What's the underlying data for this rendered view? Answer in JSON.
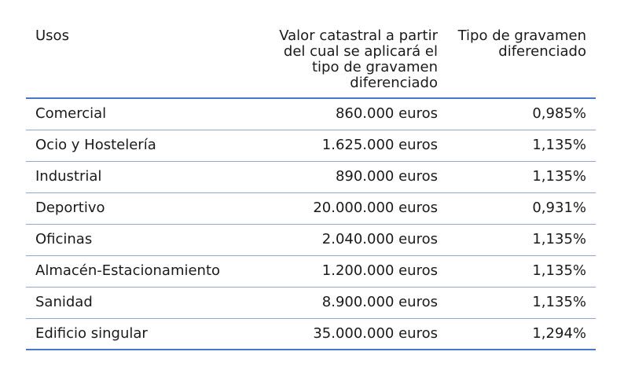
{
  "table": {
    "headers": {
      "usos": "Usos",
      "valor": "Valor catastral a partir del cual se aplicará el tipo de gravamen diferenciado",
      "tipo": "Tipo de gravamen diferenciado"
    },
    "rows": [
      {
        "uso": "Comercial",
        "valor": "860.000 euros",
        "tipo": "0,985%"
      },
      {
        "uso": "Ocio y Hostelería",
        "valor": "1.625.000 euros",
        "tipo": "1,135%"
      },
      {
        "uso": "Industrial",
        "valor": "890.000 euros",
        "tipo": "1,135%"
      },
      {
        "uso": "Deportivo",
        "valor": "20.000.000 euros",
        "tipo": "0,931%"
      },
      {
        "uso": "Oficinas",
        "valor": "2.040.000 euros",
        "tipo": "1,135%"
      },
      {
        "uso": "Almacén-Estacionamiento",
        "valor": "1.200.000 euros",
        "tipo": "1,135%"
      },
      {
        "uso": "Sanidad",
        "valor": "8.900.000 euros",
        "tipo": "1,135%"
      },
      {
        "uso": "Edificio singular",
        "valor": "35.000.000 euros",
        "tipo": "1,294%"
      }
    ]
  },
  "colors": {
    "rule_strong": "#4a78c9",
    "rule_light": "#8fa9d6",
    "text": "#1a1a1a"
  }
}
